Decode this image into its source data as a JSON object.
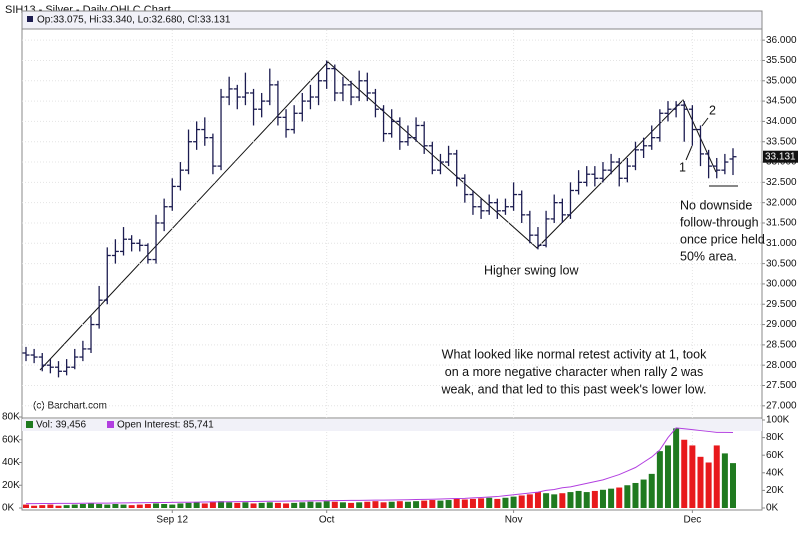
{
  "chart_data": {
    "type": "ohlc",
    "title": "SIH13 - Silver - Daily OHLC Chart",
    "info": "Op:33.075, Hi:33.340, Lo:32.680, Cl:33.131",
    "bar_color": "#1c1c50",
    "grid": true,
    "categories": [
      null,
      null,
      null,
      null,
      null,
      null,
      null,
      null,
      null,
      null,
      null,
      null,
      null,
      null,
      null,
      null,
      null,
      null,
      "Sep 12",
      null,
      null,
      null,
      null,
      null,
      null,
      null,
      null,
      null,
      null,
      null,
      null,
      null,
      null,
      null,
      null,
      null,
      null,
      "Oct",
      null,
      null,
      null,
      null,
      null,
      null,
      null,
      null,
      null,
      null,
      null,
      null,
      null,
      null,
      null,
      null,
      null,
      null,
      null,
      null,
      null,
      null,
      "Nov",
      null,
      null,
      null,
      null,
      null,
      null,
      null,
      null,
      null,
      null,
      null,
      null,
      null,
      null,
      null,
      null,
      null,
      null,
      null,
      null,
      null,
      "Dec",
      null,
      null,
      null,
      null,
      null
    ],
    "open": [
      28.3,
      28.25,
      28.2,
      28.0,
      27.95,
      27.85,
      27.95,
      28.2,
      28.4,
      29.0,
      29.6,
      30.7,
      30.8,
      31.1,
      31.0,
      30.95,
      30.6,
      31.5,
      31.9,
      32.4,
      32.8,
      33.5,
      33.8,
      33.6,
      32.9,
      34.6,
      34.8,
      34.6,
      34.7,
      34.3,
      34.5,
      34.9,
      34.1,
      33.8,
      34.2,
      34.5,
      34.6,
      35.0,
      35.3,
      34.7,
      34.9,
      34.6,
      35.0,
      34.7,
      34.3,
      33.7,
      34.0,
      33.5,
      33.6,
      33.9,
      33.4,
      32.8,
      33.0,
      33.2,
      32.6,
      32.2,
      31.9,
      31.8,
      32.0,
      31.8,
      31.9,
      32.2,
      31.7,
      31.2,
      30.95,
      31.6,
      32.0,
      31.7,
      32.3,
      32.5,
      32.7,
      32.6,
      32.8,
      33.0,
      32.6,
      32.9,
      33.3,
      33.4,
      33.6,
      34.2,
      34.3,
      34.4,
      34.3,
      33.8,
      33.2,
      32.9,
      32.8,
      33.075
    ],
    "high": [
      28.45,
      28.4,
      28.3,
      28.15,
      28.1,
      28.15,
      28.4,
      28.6,
      29.2,
      29.95,
      30.9,
      31.1,
      31.4,
      31.2,
      31.1,
      31.0,
      31.7,
      32.1,
      32.6,
      33.0,
      33.8,
      34.0,
      34.1,
      33.7,
      34.8,
      35.1,
      34.9,
      35.2,
      34.8,
      34.7,
      35.3,
      35.0,
      34.3,
      34.4,
      34.7,
      34.9,
      35.2,
      35.5,
      35.4,
      35.1,
      35.0,
      35.25,
      35.2,
      34.8,
      34.4,
      34.3,
      34.1,
      33.9,
      34.1,
      34.0,
      33.5,
      33.2,
      33.4,
      33.3,
      32.7,
      32.3,
      32.1,
      32.2,
      32.1,
      32.1,
      32.5,
      32.3,
      31.8,
      31.4,
      31.8,
      32.2,
      32.1,
      32.5,
      32.8,
      32.9,
      32.9,
      33.0,
      33.2,
      33.1,
      33.1,
      33.5,
      33.6,
      33.9,
      34.3,
      34.5,
      34.5,
      34.5,
      34.4,
      33.9,
      33.3,
      33.1,
      33.2,
      33.34
    ],
    "low": [
      28.1,
      28.05,
      27.85,
      27.8,
      27.7,
      27.75,
      27.9,
      28.1,
      28.3,
      28.9,
      29.5,
      30.5,
      30.7,
      30.8,
      30.8,
      30.5,
      30.5,
      31.3,
      31.8,
      32.3,
      32.7,
      33.3,
      33.4,
      32.7,
      32.8,
      34.4,
      34.3,
      34.4,
      33.9,
      34.1,
      34.4,
      33.9,
      33.6,
      33.7,
      34.0,
      34.3,
      34.4,
      34.8,
      34.5,
      34.5,
      34.4,
      34.5,
      34.5,
      34.1,
      33.5,
      33.6,
      33.3,
      33.4,
      33.5,
      33.2,
      32.7,
      32.7,
      32.9,
      32.4,
      32.0,
      31.7,
      31.6,
      31.7,
      31.6,
      31.7,
      31.8,
      31.5,
      31.0,
      30.85,
      30.9,
      31.5,
      31.5,
      31.6,
      32.2,
      32.4,
      32.4,
      32.5,
      32.7,
      32.4,
      32.5,
      32.8,
      33.1,
      33.3,
      33.5,
      34.0,
      34.1,
      33.5,
      33.4,
      32.9,
      32.6,
      32.6,
      32.7,
      32.68
    ],
    "close": [
      28.25,
      28.2,
      28.0,
      27.95,
      27.85,
      27.95,
      28.2,
      28.4,
      29.0,
      29.6,
      30.7,
      30.8,
      31.1,
      31.0,
      30.95,
      30.6,
      31.5,
      31.9,
      32.4,
      32.8,
      33.5,
      33.8,
      33.6,
      32.9,
      34.6,
      34.8,
      34.6,
      34.7,
      34.3,
      34.5,
      34.9,
      34.1,
      33.8,
      34.2,
      34.5,
      34.6,
      35.0,
      35.3,
      34.7,
      34.9,
      34.6,
      35.0,
      34.7,
      34.3,
      33.7,
      34.0,
      33.5,
      33.6,
      33.9,
      33.4,
      32.8,
      33.0,
      33.2,
      32.6,
      32.2,
      31.9,
      31.8,
      32.0,
      31.8,
      31.9,
      32.2,
      31.7,
      31.2,
      30.95,
      31.6,
      32.0,
      31.7,
      32.3,
      32.5,
      32.7,
      32.6,
      32.8,
      33.0,
      32.6,
      32.9,
      33.3,
      33.4,
      33.6,
      34.2,
      34.3,
      34.4,
      34.3,
      33.8,
      33.2,
      32.9,
      32.8,
      33.0,
      33.131
    ],
    "ylim": [
      26.7,
      36.25
    ],
    "yticks": [
      {
        "value": 27,
        "label": "27.000"
      },
      {
        "value": 27.5,
        "label": "27.500"
      },
      {
        "value": 28,
        "label": "28.000"
      },
      {
        "value": 28.5,
        "label": "28.500"
      },
      {
        "value": 29,
        "label": "29.000"
      },
      {
        "value": 29.5,
        "label": "29.500"
      },
      {
        "value": 30,
        "label": "30.000"
      },
      {
        "value": 30.5,
        "label": "30.500"
      },
      {
        "value": 31,
        "label": "31.000"
      },
      {
        "value": 31.5,
        "label": "31.500"
      },
      {
        "value": 32,
        "label": "32.000"
      },
      {
        "value": 32.5,
        "label": "32.500"
      },
      {
        "value": 33,
        "label": "33.000"
      },
      {
        "value": 33.5,
        "label": "33.500"
      },
      {
        "value": 34,
        "label": "34.000"
      },
      {
        "value": 34.5,
        "label": "34.500"
      },
      {
        "value": 35,
        "label": "35.000"
      },
      {
        "value": 35.5,
        "label": "35.500"
      },
      {
        "value": 36,
        "label": "36.000"
      }
    ],
    "volume": {
      "name": "Vol: 39,456",
      "up_color": "#1f7a1f",
      "down_color": "#e8191c",
      "values": [
        3000,
        2000,
        2500,
        3000,
        2000,
        2500,
        3000,
        3500,
        4000,
        3500,
        3000,
        3500,
        3000,
        2500,
        3000,
        3500,
        4000,
        3500,
        3000,
        4000,
        4500,
        5000,
        4000,
        5500,
        6000,
        5000,
        4500,
        5000,
        4000,
        4500,
        5000,
        4500,
        4000,
        4500,
        5000,
        5500,
        5000,
        6000,
        5500,
        5000,
        4500,
        5000,
        5500,
        6000,
        5000,
        5500,
        6000,
        5500,
        6000,
        6500,
        7000,
        6500,
        7000,
        8000,
        7500,
        8000,
        8500,
        9000,
        8000,
        9000,
        10000,
        11000,
        12000,
        14000,
        13000,
        12000,
        13000,
        14000,
        15000,
        14000,
        15000,
        16000,
        17000,
        18000,
        20000,
        22000,
        25000,
        30000,
        50000,
        55000,
        70000,
        60000,
        55000,
        45000,
        40000,
        55000,
        48000,
        39456
      ],
      "ylim": [
        0,
        80000
      ],
      "yticks": [
        {
          "value": 0,
          "label": "0K"
        },
        {
          "value": 20000,
          "label": "20K"
        },
        {
          "value": 40000,
          "label": "40K"
        },
        {
          "value": 60000,
          "label": "60K"
        },
        {
          "value": 80000,
          "label": "80K"
        }
      ]
    },
    "open_interest": {
      "name": "Open Interest: 85,741",
      "color": "#b23fe0",
      "axis": "y2",
      "values": [
        5000,
        5000,
        5100,
        5100,
        5200,
        5200,
        5300,
        5400,
        5500,
        5500,
        5600,
        5700,
        5800,
        5900,
        6000,
        6100,
        6200,
        6300,
        6400,
        6500,
        6600,
        6700,
        6800,
        6900,
        7000,
        7100,
        7200,
        7300,
        7400,
        7500,
        7600,
        7700,
        7800,
        7900,
        8000,
        8100,
        8200,
        8300,
        8400,
        8500,
        8600,
        8700,
        8800,
        8900,
        9000,
        9100,
        9200,
        9400,
        9600,
        9800,
        10000,
        10200,
        10500,
        10800,
        11000,
        11500,
        12000,
        12500,
        13000,
        14000,
        15000,
        16000,
        17000,
        18000,
        20000,
        21000,
        23000,
        24000,
        26000,
        28000,
        30000,
        32000,
        35000,
        38000,
        42000,
        46000,
        52000,
        58000,
        66000,
        80000,
        91000,
        90000,
        89000,
        88000,
        87000,
        86000,
        86000,
        85741
      ],
      "y2lim": [
        0,
        100000
      ],
      "y2ticks": [
        {
          "value": 0,
          "label": "0K"
        },
        {
          "value": 20000,
          "label": "20K"
        },
        {
          "value": 40000,
          "label": "40K"
        },
        {
          "value": 60000,
          "label": "60K"
        },
        {
          "value": 80000,
          "label": "80K"
        },
        {
          "value": 100000,
          "label": "100K"
        }
      ]
    },
    "annotations": {
      "copyright": "(c) Barchart.com",
      "swing_low_note": "Higher swing low",
      "side_note": [
        "No downside",
        "follow-through",
        "once price held",
        "50% area."
      ],
      "main_note": [
        "What looked like normal retest activity at 1, took",
        "on a more negative character when rally 2 was",
        "weak, and that led to this past week's lower low."
      ],
      "marker_1": "1",
      "marker_2": "2"
    }
  }
}
